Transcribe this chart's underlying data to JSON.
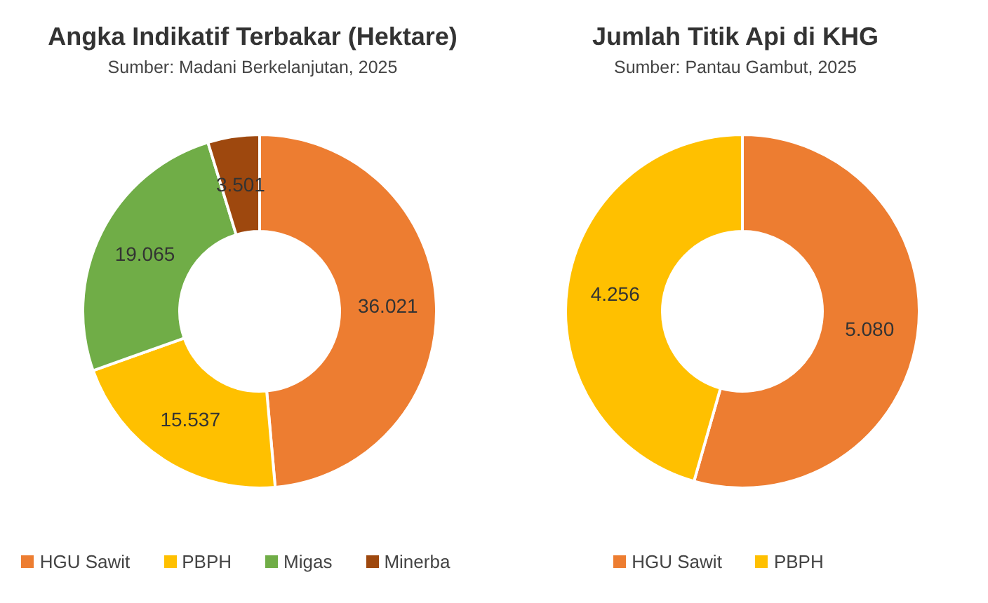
{
  "chart_data": [
    {
      "type": "donut",
      "title": "Angka Indikatif Terbakar (Hektare)",
      "subtitle": "Sumber: Madani Berkelanjutan, 2025",
      "categories": [
        "HGU Sawit",
        "PBPH",
        "Migas",
        "Minerba"
      ],
      "values": [
        36021,
        15537,
        19065,
        3501
      ],
      "colors": [
        "#ed7d31",
        "#ffc000",
        "#70ad47",
        "#9e480e"
      ],
      "value_labels": [
        "36.021",
        "15.537",
        "19.065",
        "3.501"
      ],
      "legend": "bottom"
    },
    {
      "type": "donut",
      "title": "Jumlah Titik Api di KHG",
      "subtitle": "Sumber: Pantau Gambut, 2025",
      "categories": [
        "HGU Sawit",
        "PBPH"
      ],
      "values": [
        5080,
        4256
      ],
      "colors": [
        "#ed7d31",
        "#ffc000"
      ],
      "value_labels": [
        "5.080",
        "4.256"
      ],
      "legend": "bottom"
    }
  ]
}
